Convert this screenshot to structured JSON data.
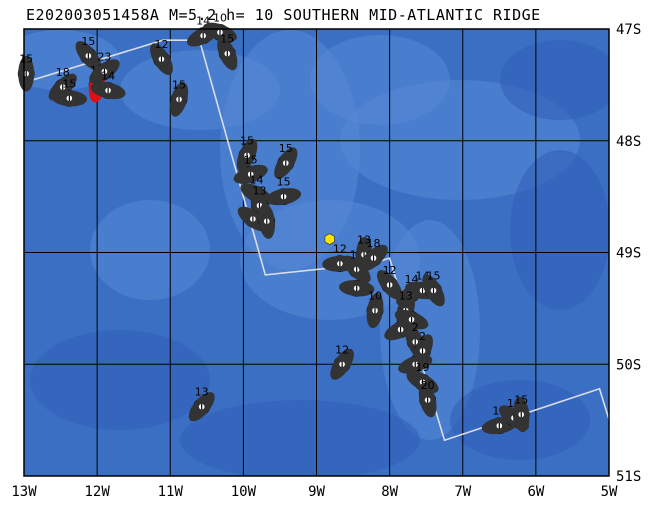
{
  "title": "E202003051458A M=5.2 h= 10 SOUTHERN MID-ATLANTIC RIDGE",
  "map": {
    "lon_range": [
      -13,
      -5
    ],
    "lat_range": [
      -51,
      -47
    ],
    "ocean_color": "#3a6fc4",
    "deep_color": "#2f5fb8",
    "shallow_color": "#5588d6",
    "grid_color": "#000000",
    "ridge_color": "#d8dde8",
    "lon_ticks": [
      {
        "value": -13,
        "label": "13W"
      },
      {
        "value": -12,
        "label": "12W"
      },
      {
        "value": -11,
        "label": "11W"
      },
      {
        "value": -10,
        "label": "10W"
      },
      {
        "value": -9,
        "label": "9W"
      },
      {
        "value": -8,
        "label": "8W"
      },
      {
        "value": -7,
        "label": "7W"
      },
      {
        "value": -6,
        "label": "6W"
      },
      {
        "value": -5,
        "label": "5W"
      }
    ],
    "lat_ticks": [
      {
        "value": -47,
        "label": "47S"
      },
      {
        "value": -48,
        "label": "48S"
      },
      {
        "value": -49,
        "label": "49S"
      },
      {
        "value": -50,
        "label": "50S"
      },
      {
        "value": -51,
        "label": "51S"
      }
    ],
    "ridge": [
      [
        -13,
        -47.48
      ],
      [
        -11.1,
        -47.1
      ],
      [
        -10.55,
        -47.1
      ],
      [
        -10.6,
        -47.1
      ],
      [
        -9.7,
        -49.2
      ],
      [
        -8.25,
        -49.1
      ],
      [
        -8.0,
        -49.05
      ],
      [
        -7.25,
        -50.68
      ],
      [
        -5.13,
        -50.22
      ],
      [
        -4.95,
        -50.6
      ]
    ],
    "epicenter": {
      "lon": -8.82,
      "lat": -48.88,
      "color": "#ffe600"
    },
    "mechanisms": [
      {
        "lon": -12.97,
        "lat": -47.4,
        "depth": "15",
        "highlight": false
      },
      {
        "lon": -12.47,
        "lat": -47.52,
        "depth": "18",
        "highlight": false
      },
      {
        "lon": -12.38,
        "lat": -47.62,
        "depth": "15",
        "highlight": false
      },
      {
        "lon": -12.12,
        "lat": -47.24,
        "depth": "15",
        "highlight": false
      },
      {
        "lon": -12.0,
        "lat": -47.5,
        "depth": "10",
        "highlight": true
      },
      {
        "lon": -11.9,
        "lat": -47.38,
        "depth": "23",
        "highlight": false
      },
      {
        "lon": -11.85,
        "lat": -47.55,
        "depth": "14",
        "highlight": false
      },
      {
        "lon": -11.12,
        "lat": -47.27,
        "depth": "12",
        "highlight": false
      },
      {
        "lon": -10.88,
        "lat": -47.63,
        "depth": "15",
        "highlight": false
      },
      {
        "lon": -10.55,
        "lat": -47.06,
        "depth": "14",
        "highlight": false
      },
      {
        "lon": -10.32,
        "lat": -47.03,
        "depth": "10",
        "highlight": false
      },
      {
        "lon": -10.22,
        "lat": -47.22,
        "depth": "15",
        "highlight": false
      },
      {
        "lon": -9.95,
        "lat": -48.13,
        "depth": "15",
        "highlight": false
      },
      {
        "lon": -9.9,
        "lat": -48.3,
        "depth": "15",
        "highlight": false
      },
      {
        "lon": -9.82,
        "lat": -48.48,
        "depth": "14",
        "highlight": false
      },
      {
        "lon": -9.78,
        "lat": -48.58,
        "depth": "13",
        "highlight": false
      },
      {
        "lon": -9.42,
        "lat": -48.2,
        "depth": "15",
        "highlight": false
      },
      {
        "lon": -9.45,
        "lat": -48.5,
        "depth": "15",
        "highlight": false
      },
      {
        "lon": -9.87,
        "lat": -48.7,
        "depth": "",
        "highlight": false
      },
      {
        "lon": -9.68,
        "lat": -48.72,
        "depth": "",
        "highlight": false
      },
      {
        "lon": -10.57,
        "lat": -50.38,
        "depth": "13",
        "highlight": false
      },
      {
        "lon": -8.68,
        "lat": -49.1,
        "depth": "12",
        "highlight": false
      },
      {
        "lon": -8.45,
        "lat": -49.15,
        "depth": "11",
        "highlight": false
      },
      {
        "lon": -8.35,
        "lat": -49.02,
        "depth": "13",
        "highlight": false
      },
      {
        "lon": -8.22,
        "lat": -49.05,
        "depth": "18",
        "highlight": false
      },
      {
        "lon": -8.45,
        "lat": -49.32,
        "depth": "",
        "highlight": false
      },
      {
        "lon": -8.0,
        "lat": -49.29,
        "depth": "12",
        "highlight": false
      },
      {
        "lon": -8.2,
        "lat": -49.52,
        "depth": "10",
        "highlight": false
      },
      {
        "lon": -7.7,
        "lat": -49.37,
        "depth": "14",
        "highlight": false
      },
      {
        "lon": -7.55,
        "lat": -49.34,
        "depth": "14",
        "highlight": false
      },
      {
        "lon": -7.4,
        "lat": -49.34,
        "depth": "15",
        "highlight": false
      },
      {
        "lon": -7.78,
        "lat": -49.52,
        "depth": "13",
        "highlight": false
      },
      {
        "lon": -7.85,
        "lat": -49.69,
        "depth": "",
        "highlight": false
      },
      {
        "lon": -7.7,
        "lat": -49.6,
        "depth": "",
        "highlight": false
      },
      {
        "lon": -7.65,
        "lat": -49.8,
        "depth": "2",
        "highlight": false
      },
      {
        "lon": -7.55,
        "lat": -49.88,
        "depth": "2",
        "highlight": false
      },
      {
        "lon": -7.65,
        "lat": -50.0,
        "depth": "",
        "highlight": false
      },
      {
        "lon": -7.55,
        "lat": -50.16,
        "depth": "19",
        "highlight": false
      },
      {
        "lon": -7.48,
        "lat": -50.32,
        "depth": "20",
        "highlight": false
      },
      {
        "lon": -8.65,
        "lat": -50.0,
        "depth": "12",
        "highlight": false
      },
      {
        "lon": -6.5,
        "lat": -50.55,
        "depth": "19",
        "highlight": false
      },
      {
        "lon": -6.3,
        "lat": -50.48,
        "depth": "16",
        "highlight": false
      },
      {
        "lon": -6.2,
        "lat": -50.45,
        "depth": "15",
        "highlight": false
      }
    ]
  }
}
